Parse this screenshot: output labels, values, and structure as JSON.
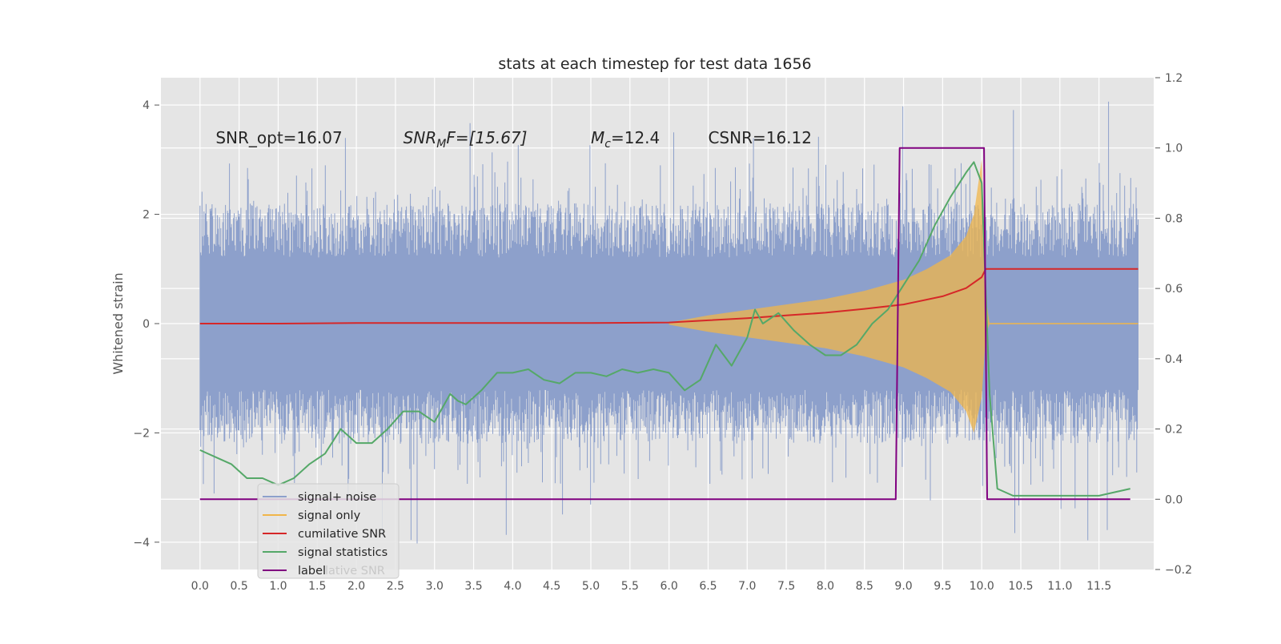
{
  "chart_data": {
    "type": "line",
    "title": "stats at each timestep for test data 1656",
    "ylabel": "Whitened strain",
    "xlim": [
      -0.5,
      12.2
    ],
    "ylim": [
      -4.5,
      4.5
    ],
    "y2lim": [
      -0.2,
      1.2
    ],
    "x_ticks": [
      0.0,
      0.5,
      1.0,
      1.5,
      2.0,
      2.5,
      3.0,
      3.5,
      4.0,
      4.5,
      5.0,
      5.5,
      6.0,
      6.5,
      7.0,
      7.5,
      8.0,
      8.5,
      9.0,
      9.5,
      10.0,
      10.5,
      11.0,
      11.5
    ],
    "x_tick_labels": [
      "0.0",
      "0.5",
      "1.0",
      "1.5",
      "2.0",
      "2.5",
      "3.0",
      "3.5",
      "4.0",
      "4.5",
      "5.0",
      "5.5",
      "6.0",
      "6.5",
      "7.0",
      "7.5",
      "8.0",
      "8.5",
      "9.0",
      "9.5",
      "10.0",
      "10.5",
      "11.0",
      "11.5"
    ],
    "y_ticks": [
      4,
      2,
      0,
      -2,
      -4
    ],
    "y_tick_labels": [
      "4",
      "2",
      "0",
      "−2",
      "−4"
    ],
    "y2_ticks": [
      1.2,
      1.0,
      0.8,
      0.6,
      0.4,
      0.2,
      0.0,
      -0.2
    ],
    "y2_tick_labels": [
      "1.2",
      "1.0",
      "0.8",
      "0.6",
      "0.4",
      "0.2",
      "0.0",
      "−0.2"
    ],
    "grid": true,
    "legend_position": "lower-left",
    "annotations": [
      {
        "text": "SNR_opt=16.07",
        "x": 0.2,
        "y": 3.3
      },
      {
        "main": "SNR",
        "sub": "M",
        "after": "F=[15.67]",
        "x": 2.6,
        "y": 3.3
      },
      {
        "main": "M",
        "sub": "c",
        "after": "=12.4",
        "x": 5.0,
        "y": 3.3
      },
      {
        "text": "CSNR=16.12",
        "x": 6.5,
        "y": 3.3
      }
    ],
    "series": [
      {
        "name": "signal+ noise",
        "axis": "left",
        "color": "#8da0cb",
        "style": "noise",
        "x_range": [
          0.0,
          12.0
        ],
        "envelope_upper": 2.2,
        "envelope_lower": -2.2,
        "spike_max": 4.1,
        "spike_min": -4.1
      },
      {
        "name": "signal only",
        "axis": "left",
        "color": "#f0b64a",
        "style": "chirp-envelope",
        "x": [
          6.0,
          6.5,
          7.0,
          7.5,
          8.0,
          8.5,
          9.0,
          9.3,
          9.6,
          9.8,
          9.9,
          10.0,
          10.05,
          10.1
        ],
        "values": [
          0.02,
          0.15,
          0.25,
          0.35,
          0.45,
          0.6,
          0.8,
          1.0,
          1.25,
          1.6,
          2.0,
          3.0,
          0.5,
          0.0
        ]
      },
      {
        "name": "cumilative SNR",
        "axis": "left",
        "color": "#d62728",
        "x": [
          0.0,
          1.0,
          2.0,
          3.0,
          4.0,
          5.0,
          6.0,
          6.5,
          7.0,
          7.5,
          8.0,
          8.5,
          9.0,
          9.5,
          9.8,
          10.0,
          10.05,
          12.0
        ],
        "values": [
          0.0,
          0.0,
          0.01,
          0.01,
          0.01,
          0.01,
          0.02,
          0.06,
          0.1,
          0.15,
          0.2,
          0.27,
          0.35,
          0.5,
          0.65,
          0.85,
          1.0,
          1.0
        ]
      },
      {
        "name": "signal statistics",
        "axis": "right",
        "color": "#55a868",
        "x": [
          0.0,
          0.2,
          0.4,
          0.6,
          0.8,
          1.0,
          1.2,
          1.4,
          1.6,
          1.8,
          2.0,
          2.2,
          2.4,
          2.6,
          2.8,
          3.0,
          3.2,
          3.3,
          3.4,
          3.6,
          3.8,
          4.0,
          4.2,
          4.4,
          4.6,
          4.8,
          5.0,
          5.2,
          5.4,
          5.6,
          5.8,
          6.0,
          6.2,
          6.4,
          6.6,
          6.8,
          7.0,
          7.1,
          7.2,
          7.4,
          7.6,
          7.8,
          8.0,
          8.2,
          8.4,
          8.6,
          8.8,
          9.0,
          9.2,
          9.4,
          9.6,
          9.8,
          9.9,
          10.0,
          10.1,
          10.2,
          10.4,
          10.6,
          11.0,
          11.5,
          11.9
        ],
        "values": [
          0.14,
          0.12,
          0.1,
          0.06,
          0.06,
          0.04,
          0.06,
          0.1,
          0.13,
          0.2,
          0.16,
          0.16,
          0.2,
          0.25,
          0.25,
          0.22,
          0.3,
          0.28,
          0.27,
          0.31,
          0.36,
          0.36,
          0.37,
          0.34,
          0.33,
          0.36,
          0.36,
          0.35,
          0.37,
          0.36,
          0.37,
          0.36,
          0.31,
          0.34,
          0.44,
          0.38,
          0.46,
          0.54,
          0.5,
          0.53,
          0.48,
          0.44,
          0.41,
          0.41,
          0.44,
          0.5,
          0.54,
          0.61,
          0.68,
          0.78,
          0.86,
          0.93,
          0.96,
          0.9,
          0.3,
          0.03,
          0.01,
          0.01,
          0.01,
          0.01,
          0.03
        ]
      },
      {
        "name": "label",
        "axis": "right",
        "color": "#800080",
        "x": [
          0.0,
          8.9,
          8.95,
          9.0,
          10.0,
          10.03,
          10.07,
          11.9
        ],
        "values": [
          0.0,
          0.0,
          1.0,
          1.0,
          1.0,
          1.0,
          0.0,
          0.0
        ]
      }
    ],
    "legend_overlap_text": "lative SNR"
  }
}
